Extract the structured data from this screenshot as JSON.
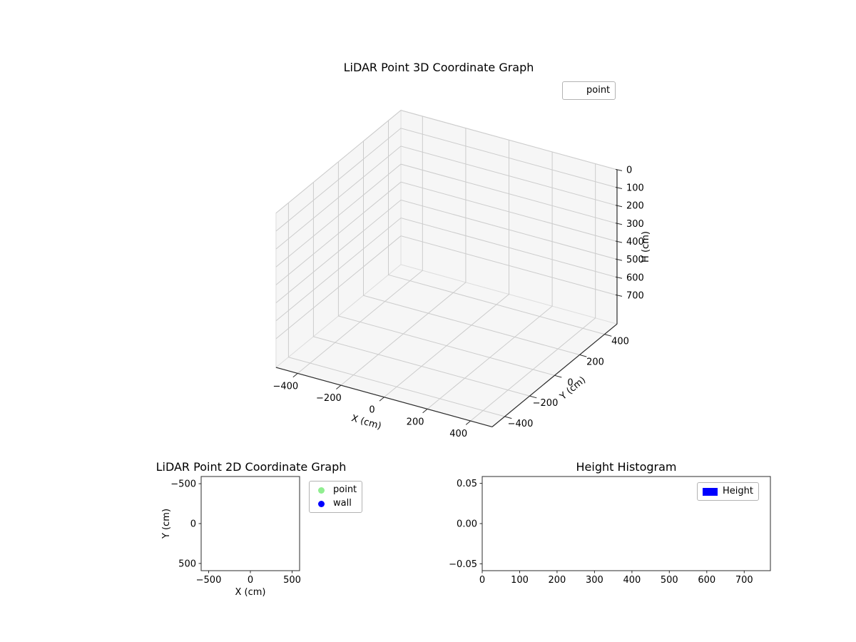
{
  "figure": {
    "background": "#ffffff"
  },
  "chart_data": [
    {
      "type": "scatter3d",
      "title": "LiDAR Point 3D Coordinate Graph",
      "xlabel": "X (cm)",
      "ylabel": "Y (cm)",
      "zlabel": "H (cm)",
      "xlim": [
        -500,
        500
      ],
      "ylim": [
        -500,
        500
      ],
      "zlim": [
        0,
        860
      ],
      "z_axis_inverted": true,
      "xticks": [
        -400,
        -200,
        0,
        200,
        400
      ],
      "xticklabels": [
        "−400",
        "−200",
        "0",
        "200",
        "400"
      ],
      "yticks": [
        -400,
        -200,
        0,
        200,
        400
      ],
      "yticklabels": [
        "−400",
        "−200",
        "0",
        "200",
        "400"
      ],
      "zticks": [
        0,
        100,
        200,
        300,
        400,
        500,
        600,
        700
      ],
      "zticklabels": [
        "0",
        "100",
        "200",
        "300",
        "400",
        "500",
        "600",
        "700"
      ],
      "grid": true,
      "pane_color": "#f6f6f6",
      "pane_edge_color": "#dedede",
      "grid_color": "#cccccc",
      "axis_color": "#2b2b2b",
      "legend": {
        "position": "upper right",
        "entries": [
          {
            "label": "point",
            "marker": "none",
            "color": null
          }
        ]
      },
      "series": [
        {
          "name": "point",
          "points": []
        }
      ]
    },
    {
      "type": "scatter",
      "title": "LiDAR Point 2D Coordinate Graph",
      "xlabel": "X (cm)",
      "ylabel": "Y (cm)",
      "xlim": [
        -590,
        590
      ],
      "ylim": [
        -590,
        590
      ],
      "xticks": [
        -500,
        0,
        500
      ],
      "xticklabels": [
        "−500",
        "0",
        "500"
      ],
      "yticks": [
        -500,
        0,
        500
      ],
      "yticklabels": [
        "500",
        "0",
        "−500"
      ],
      "grid": false,
      "legend": {
        "position": "outside upper right",
        "entries": [
          {
            "label": "point",
            "marker": "circle",
            "color": "#90ee90"
          },
          {
            "label": "wall",
            "marker": "circle",
            "color": "#0000ff"
          }
        ]
      },
      "series": [
        {
          "name": "point",
          "points": []
        },
        {
          "name": "wall",
          "points": []
        }
      ]
    },
    {
      "type": "bar",
      "title": "Height Histogram",
      "xlabel": "",
      "ylabel": "",
      "xlim": [
        0,
        770
      ],
      "ylim": [
        -0.0585,
        0.0585
      ],
      "xticks": [
        0,
        100,
        200,
        300,
        400,
        500,
        600,
        700
      ],
      "xticklabels": [
        "0",
        "100",
        "200",
        "300",
        "400",
        "500",
        "600",
        "700"
      ],
      "yticks": [
        0.05,
        0.0,
        -0.05
      ],
      "yticklabels": [
        "0.05",
        "0.00",
        "−0.05"
      ],
      "grid": false,
      "legend": {
        "position": "upper right",
        "entries": [
          {
            "label": "Height",
            "marker": "rect",
            "color": "#0000ff"
          }
        ]
      },
      "values": []
    }
  ]
}
